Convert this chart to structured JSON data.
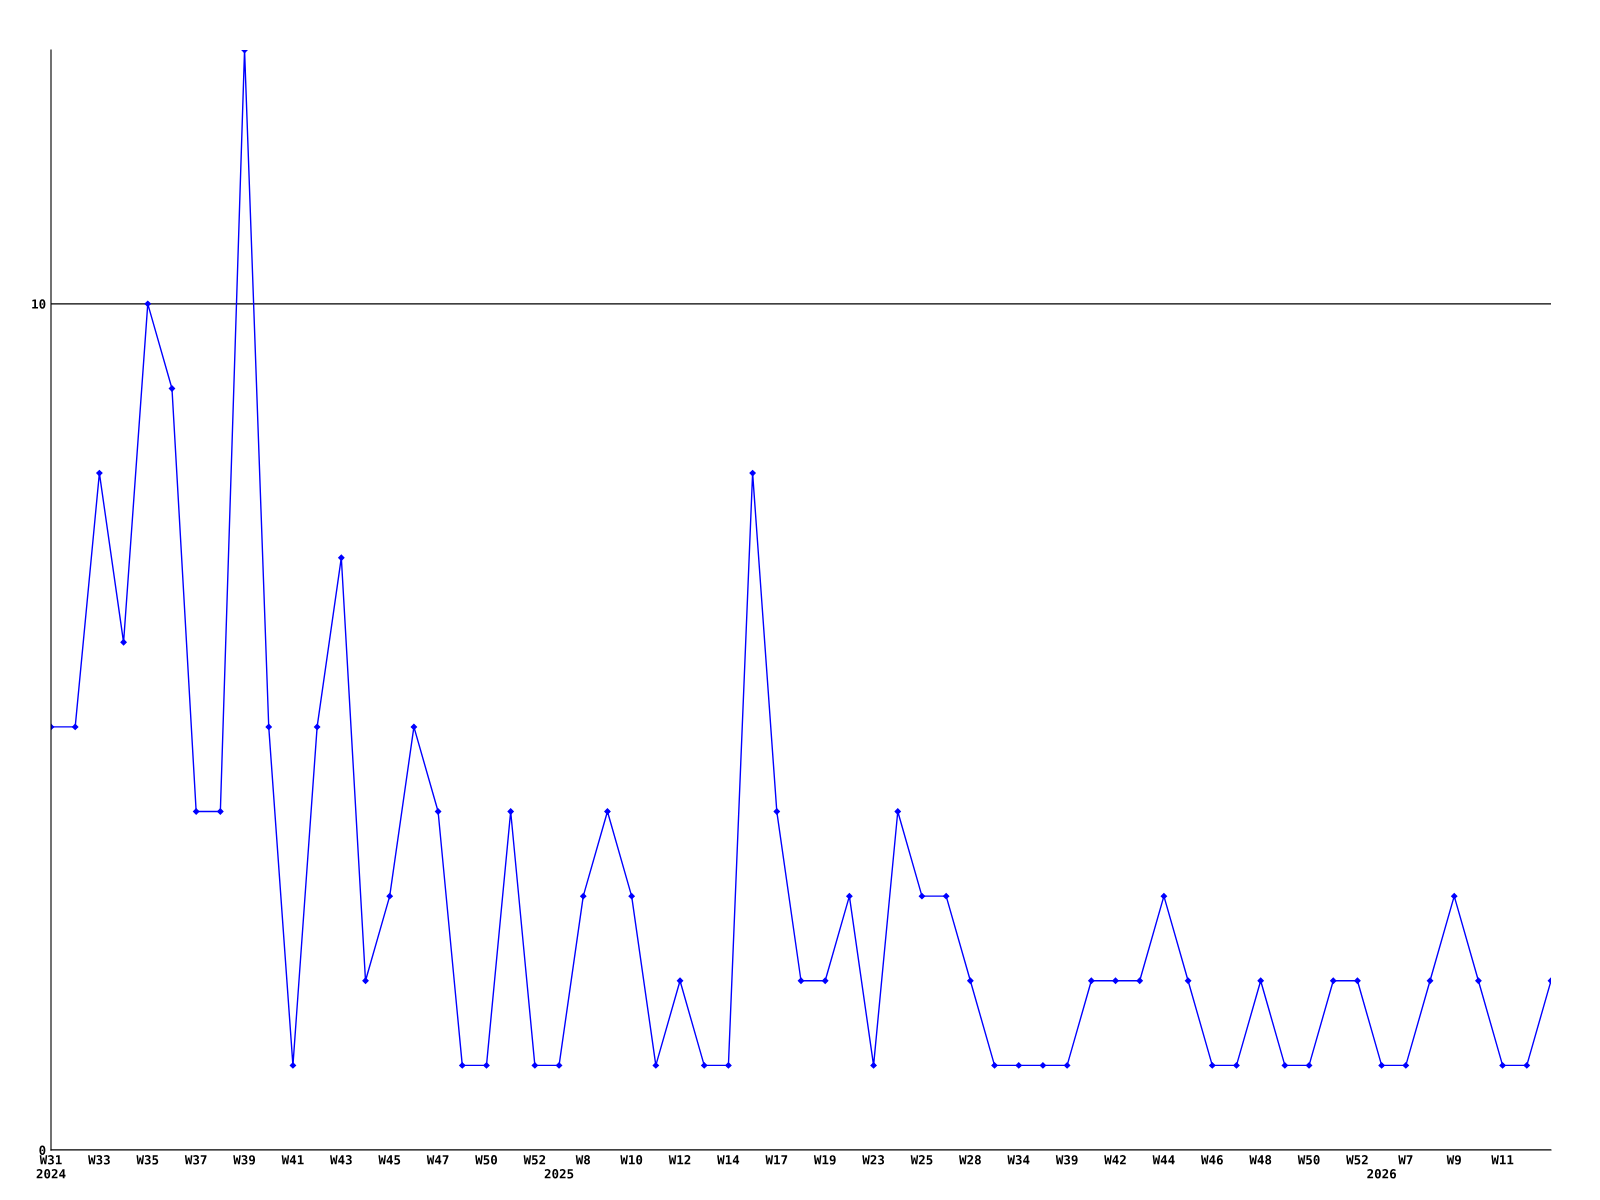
{
  "chart_data": {
    "type": "line",
    "categories": [
      "W31\n2024",
      null,
      "W33",
      null,
      "W35",
      null,
      "W37",
      null,
      "W39",
      null,
      "W41",
      null,
      "W43",
      null,
      "W45",
      null,
      "W47",
      null,
      "W50",
      null,
      "W52",
      "\n2025",
      "W8",
      null,
      "W10",
      null,
      "W12",
      null,
      "W14",
      null,
      "W17",
      null,
      "W19",
      null,
      "W23",
      null,
      "W25",
      null,
      "W28",
      null,
      "W34",
      null,
      "W39",
      null,
      "W42",
      null,
      "W44",
      null,
      "W46",
      null,
      "W48",
      null,
      "W50",
      null,
      "W52",
      "\n2026",
      "W7",
      null,
      "W9",
      null,
      "W11",
      null,
      null
    ],
    "series": [
      {
        "color": "#0000ff",
        "values": [
          5,
          5,
          8,
          6,
          10,
          9,
          4,
          4,
          13,
          5,
          1,
          5,
          7,
          2,
          3,
          5,
          4,
          1,
          1,
          4,
          1,
          1,
          3,
          4,
          3,
          1,
          2,
          1,
          1,
          8,
          4,
          2,
          2,
          3,
          1,
          4,
          3,
          3,
          2,
          1,
          1,
          1,
          1,
          2,
          2,
          2,
          3,
          2,
          1,
          1,
          2,
          1,
          1,
          2,
          2,
          1,
          1,
          2,
          3,
          2,
          1,
          1,
          2
        ]
      }
    ],
    "ylim": [
      0,
      13
    ],
    "yticks": [
      0,
      10
    ],
    "grid": "y",
    "marker": "diamond",
    "line_style": "solid"
  }
}
